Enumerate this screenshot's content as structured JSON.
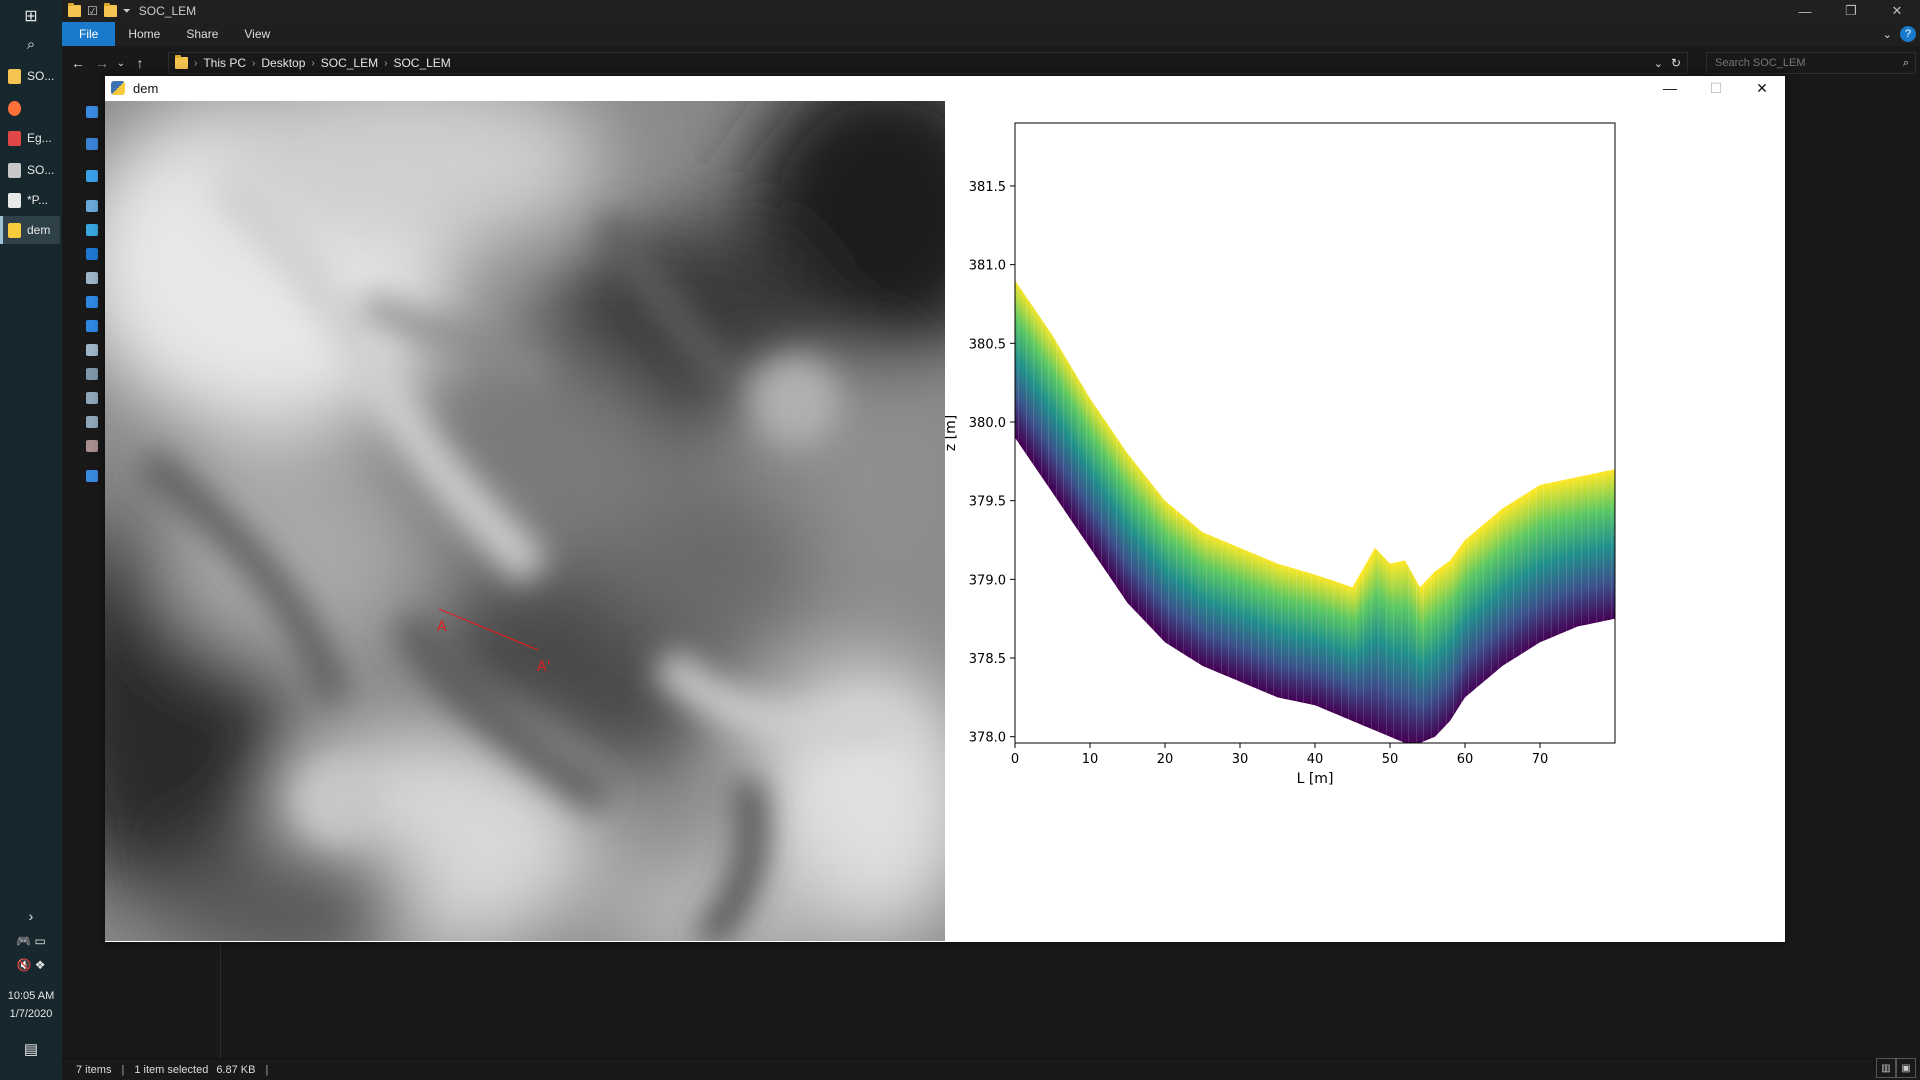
{
  "taskbar": {
    "apps": [
      {
        "label": "SO...",
        "color": "#f5c451"
      },
      {
        "label": "",
        "color": "#ff7139"
      },
      {
        "label": "Eg...",
        "color": "#e04848"
      },
      {
        "label": "SO...",
        "color": "#c8c8c8"
      },
      {
        "label": "*P...",
        "color": "#e8e8e8"
      },
      {
        "label": "dem",
        "color": "#f7cb3c"
      }
    ],
    "clock_time": "10:05 AM",
    "clock_date": "1/7/2020"
  },
  "explorer": {
    "title": "SOC_LEM",
    "ribbon_tabs": [
      "File",
      "Home",
      "Share",
      "View"
    ],
    "breadcrumb": [
      "This PC",
      "Desktop",
      "SOC_LEM",
      "SOC_LEM"
    ],
    "search_placeholder": "Search SOC_LEM",
    "status": {
      "items": "7 items",
      "selected": "1 item selected",
      "size": "6.87 KB"
    }
  },
  "figure": {
    "title": "dem",
    "section_start_label": "A",
    "section_end_label": "A'"
  },
  "chart_data": {
    "type": "area",
    "xlabel": "L [m]",
    "ylabel": "z [m]",
    "xlim": [
      0,
      80
    ],
    "ylim": [
      377.96,
      381.9
    ],
    "xticks": [
      0,
      10,
      20,
      30,
      40,
      50,
      60,
      70
    ],
    "yticks": [
      378.0,
      378.5,
      379.0,
      379.5,
      380.0,
      380.5,
      381.0,
      381.5
    ],
    "ytick_labels": [
      "378.0",
      "378.5",
      "379.0",
      "379.5",
      "380.0",
      "380.5",
      "381.0",
      "381.5"
    ],
    "colormap": [
      "#440154",
      "#3b528b",
      "#21918c",
      "#5ec962",
      "#fde725"
    ],
    "top_surface": {
      "x": [
        0,
        5,
        10,
        15,
        20,
        25,
        30,
        35,
        40,
        45,
        48,
        50,
        52,
        54,
        56,
        58,
        60,
        65,
        70,
        75,
        80
      ],
      "z": [
        380.9,
        380.55,
        380.15,
        379.8,
        379.5,
        379.3,
        379.2,
        379.1,
        379.03,
        378.95,
        379.2,
        379.1,
        379.12,
        378.95,
        379.05,
        379.12,
        379.25,
        379.45,
        379.6,
        379.65,
        379.7
      ]
    },
    "bottom_surface": {
      "x": [
        0,
        5,
        10,
        15,
        20,
        25,
        30,
        35,
        40,
        45,
        50,
        52,
        54,
        56,
        58,
        60,
        65,
        70,
        75,
        80
      ],
      "z": [
        379.9,
        379.55,
        379.2,
        378.85,
        378.6,
        378.45,
        378.35,
        378.25,
        378.2,
        378.1,
        378.0,
        377.96,
        377.96,
        378.0,
        378.1,
        378.25,
        378.45,
        378.6,
        378.7,
        378.75
      ]
    }
  }
}
